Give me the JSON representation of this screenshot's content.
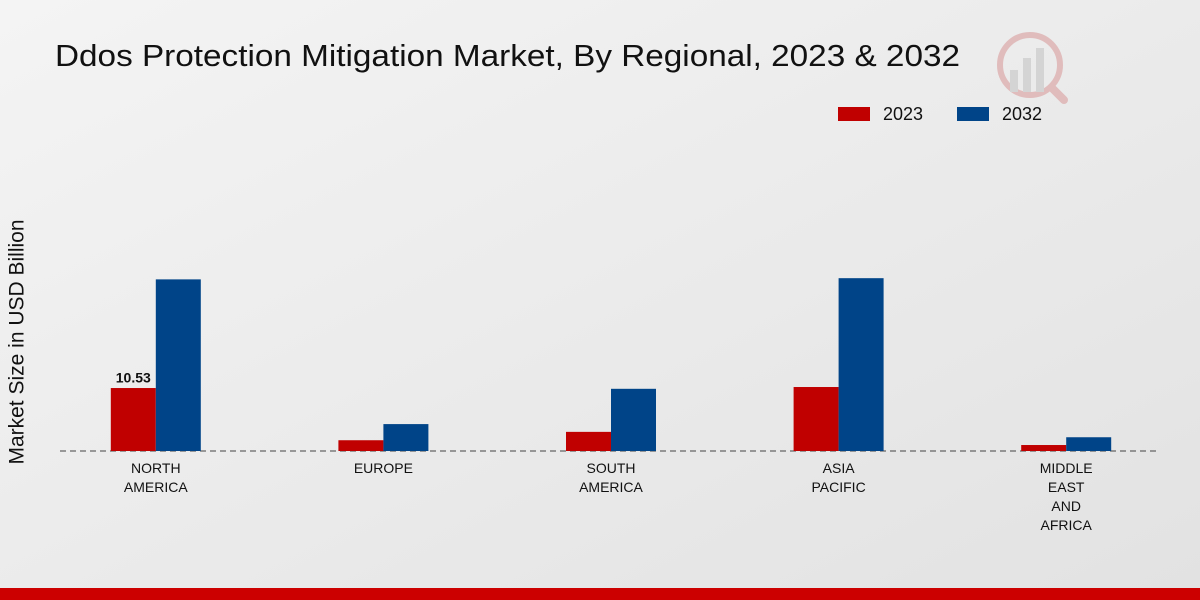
{
  "chart_data": {
    "type": "bar",
    "title": "Ddos Protection Mitigation Market, By Regional, 2023 & 2032",
    "y_label": "Market Size in USD Billion",
    "categories": [
      "NORTH AMERICA",
      "EUROPE",
      "SOUTH AMERICA",
      "ASIA PACIFIC",
      "MIDDLE EAST AND AFRICA"
    ],
    "series": [
      {
        "name": "2023",
        "color": "#c00000",
        "values": [
          10.53,
          1.8,
          3.2,
          10.7,
          1.0
        ],
        "value_labels": [
          "10.53",
          null,
          null,
          null,
          null
        ]
      },
      {
        "name": "2032",
        "color": "#004488",
        "values": [
          28.7,
          4.5,
          10.4,
          28.9,
          2.3
        ]
      }
    ],
    "ylim": [
      0,
      50
    ],
    "legend": "top-right"
  }
}
